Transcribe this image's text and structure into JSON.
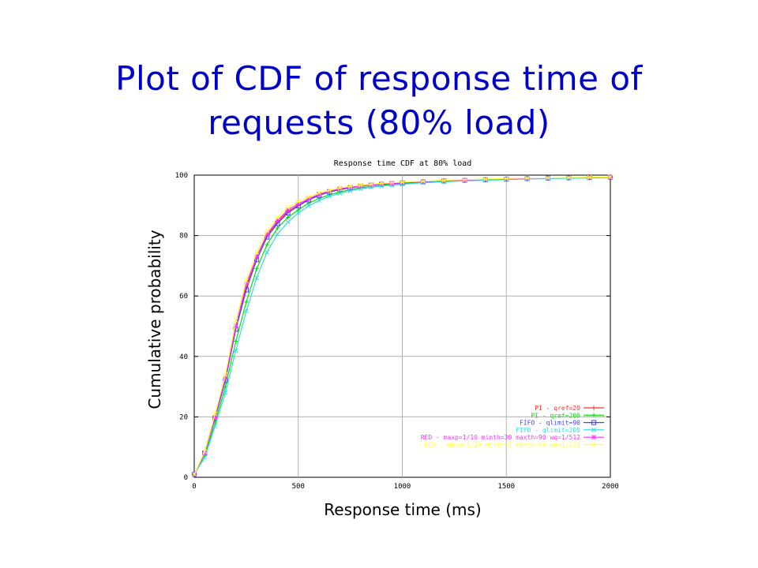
{
  "slide": {
    "title_line1": "Plot of CDF of response time of",
    "title_line2": "requests (80% load)",
    "xcaption": "Response time (ms)",
    "ycaption": "Cumulative probability"
  },
  "chart_data": {
    "type": "line",
    "title": "Response time CDF at 80% load",
    "xlabel": "Response time (ms)",
    "ylabel": "Cumulative probability",
    "xlim": [
      0,
      2000
    ],
    "ylim": [
      0,
      100
    ],
    "xticks": [
      0,
      500,
      1000,
      1500,
      2000
    ],
    "yticks": [
      0,
      20,
      40,
      60,
      80,
      100
    ],
    "grid": true,
    "legend_position": "bottom-right",
    "x": [
      0,
      50,
      100,
      150,
      200,
      250,
      300,
      350,
      400,
      450,
      500,
      550,
      600,
      650,
      700,
      750,
      800,
      850,
      900,
      950,
      1000,
      1100,
      1200,
      1300,
      1400,
      1500,
      1600,
      1700,
      1800,
      1900,
      2000
    ],
    "series": [
      {
        "name": "PI - qref=20",
        "color": "#ff3030",
        "marker": "plus",
        "values": [
          1,
          8,
          20,
          33,
          50,
          63,
          73,
          80,
          84.5,
          88,
          90,
          92,
          93.5,
          94.5,
          95.3,
          95.9,
          96.3,
          96.7,
          97,
          97.2,
          97.4,
          97.8,
          98.1,
          98.3,
          98.5,
          98.7,
          98.85,
          99,
          99.1,
          99.2,
          99.3
        ]
      },
      {
        "name": "PI - qref=200",
        "color": "#00dd00",
        "marker": "plus",
        "values": [
          1,
          7,
          18,
          30,
          45,
          58,
          69,
          77,
          82.5,
          86,
          88.5,
          90.7,
          92.3,
          93.5,
          94.4,
          95.2,
          95.8,
          96.2,
          96.6,
          96.9,
          97.2,
          97.6,
          97.9,
          98.2,
          98.4,
          98.6,
          98.8,
          98.95,
          99.05,
          99.15,
          99.3
        ]
      },
      {
        "name": "FIFO - qlimit=90",
        "color": "#4040ff",
        "marker": "square",
        "values": [
          1,
          8,
          19.5,
          32,
          49,
          62,
          72,
          79.5,
          84,
          87.5,
          89.8,
          91.8,
          93.3,
          94.4,
          95.2,
          95.8,
          96.3,
          96.7,
          97,
          97.2,
          97.4,
          97.8,
          98.1,
          98.3,
          98.5,
          98.7,
          98.85,
          99,
          99.1,
          99.2,
          99.3
        ]
      },
      {
        "name": "FIFO - qlimit=200",
        "color": "#33dddd",
        "marker": "x",
        "values": [
          1,
          6.5,
          17,
          28,
          42,
          55,
          66,
          74.5,
          80.5,
          84.5,
          87.5,
          89.8,
          91.6,
          93,
          94,
          94.8,
          95.5,
          96,
          96.4,
          96.7,
          97,
          97.5,
          97.8,
          98.1,
          98.3,
          98.5,
          98.7,
          98.85,
          98.95,
          99.05,
          99.2
        ]
      },
      {
        "name": "RED - maxp=1/10 minth=30 maxth=90 wq=1/512",
        "color": "#ff33ff",
        "marker": "star",
        "values": [
          1,
          8,
          20,
          33,
          50,
          64,
          73,
          80.5,
          85,
          88.5,
          90.5,
          92.2,
          93.7,
          94.7,
          95.5,
          96,
          96.4,
          96.8,
          97.1,
          97.3,
          97.5,
          97.9,
          98.2,
          98.4,
          98.6,
          98.8,
          98.9,
          99.05,
          99.15,
          99.25,
          99.35
        ]
      },
      {
        "name": "RED - maxp=1/20 minth=5 maxth=90 wq=1/128",
        "color": "#ffff33",
        "marker": "x",
        "values": [
          1,
          8.5,
          21,
          34,
          52,
          65,
          74.5,
          81.5,
          86,
          89.3,
          91.2,
          92.8,
          94.1,
          95,
          95.8,
          96.3,
          96.7,
          97,
          97.3,
          97.5,
          97.7,
          98,
          98.3,
          98.5,
          98.7,
          98.9,
          99,
          99.1,
          99.2,
          99.3,
          99.4
        ]
      }
    ]
  }
}
